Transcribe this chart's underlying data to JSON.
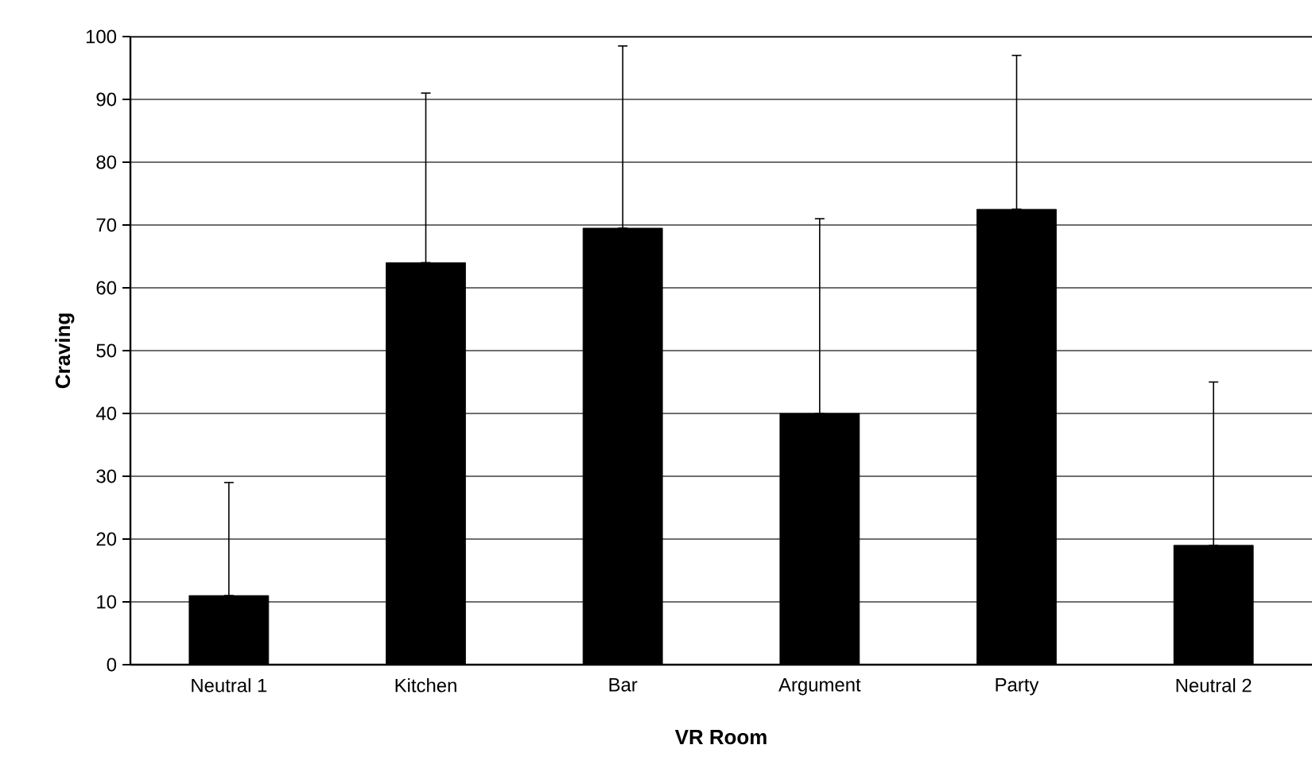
{
  "chart_data": {
    "type": "bar",
    "xlabel": "VR Room",
    "ylabel": "Craving",
    "categories": [
      "Neutral 1",
      "Kitchen",
      "Bar",
      "Argument",
      "Party",
      "Neutral 2"
    ],
    "values": [
      11,
      64,
      69.5,
      40,
      72.5,
      19
    ],
    "errors": [
      [
        11,
        29
      ],
      [
        64,
        91
      ],
      [
        69.5,
        98.5
      ],
      [
        40,
        71
      ],
      [
        72.5,
        97
      ],
      [
        19,
        45
      ]
    ],
    "color": "#000000",
    "ylim": [
      0,
      100
    ],
    "yticks": [
      0,
      10,
      20,
      30,
      40,
      50,
      60,
      70,
      80,
      90,
      100
    ],
    "grid": "y"
  }
}
